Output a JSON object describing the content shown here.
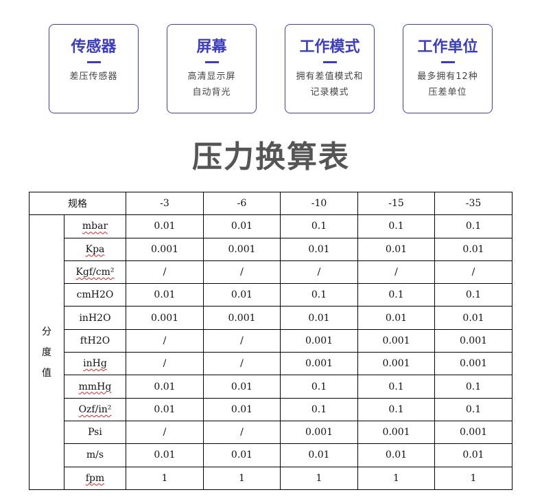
{
  "cards": [
    {
      "title": "传感器",
      "lines": [
        "差压传感器"
      ]
    },
    {
      "title": "屏幕",
      "lines": [
        "高清显示屏",
        "自动背光"
      ]
    },
    {
      "title": "工作模式",
      "lines": [
        "拥有差值模式和",
        "记录模式"
      ]
    },
    {
      "title": "工作单位",
      "lines": [
        "最多拥有12种",
        "压差单位"
      ]
    }
  ],
  "accent": "#3a3cc8",
  "page_title": "压力换算表",
  "table": {
    "header_label": "规格",
    "columns": [
      "-3",
      "-6",
      "-10",
      "-15",
      "-35"
    ],
    "group_label": [
      "分",
      "度",
      "值"
    ],
    "rows": [
      {
        "unit": "mbar",
        "spell": true,
        "values": [
          "0.01",
          "0.01",
          "0.1",
          "0.1",
          "0.1"
        ]
      },
      {
        "unit": "Kpa",
        "spell": true,
        "values": [
          "0.001",
          "0.001",
          "0.01",
          "0.01",
          "0.01"
        ]
      },
      {
        "unit": "Kgf/cm²",
        "spell": true,
        "values": [
          "/",
          "/",
          "/",
          "/",
          "/"
        ]
      },
      {
        "unit": "cmH2O",
        "spell": false,
        "values": [
          "0.01",
          "0.01",
          "0.1",
          "0.1",
          "0.1"
        ]
      },
      {
        "unit": "inH2O",
        "spell": false,
        "values": [
          "0.001",
          "0.001",
          "0.01",
          "0.01",
          "0.01"
        ]
      },
      {
        "unit": "ftH2O",
        "spell": false,
        "values": [
          "/",
          "/",
          "0.001",
          "0.001",
          "0.001"
        ]
      },
      {
        "unit": "inHg",
        "spell": true,
        "values": [
          "/",
          "/",
          "0.001",
          "0.001",
          "0.001"
        ]
      },
      {
        "unit": "mmHg",
        "spell": true,
        "values": [
          "0.01",
          "0.01",
          "0.1",
          "0.1",
          "0.1"
        ]
      },
      {
        "unit": "Ozf/in²",
        "spell": true,
        "values": [
          "0.01",
          "0.01",
          "0.1",
          "0.1",
          "0.1"
        ]
      },
      {
        "unit": "Psi",
        "spell": false,
        "values": [
          "/",
          "/",
          "0.001",
          "0.001",
          "0.001"
        ]
      },
      {
        "unit": "m/s",
        "spell": false,
        "values": [
          "0.01",
          "0.01",
          "0.01",
          "0.01",
          "0.01"
        ]
      },
      {
        "unit": "fpm",
        "spell": true,
        "values": [
          "1",
          "1",
          "1",
          "1",
          "1"
        ]
      }
    ]
  }
}
